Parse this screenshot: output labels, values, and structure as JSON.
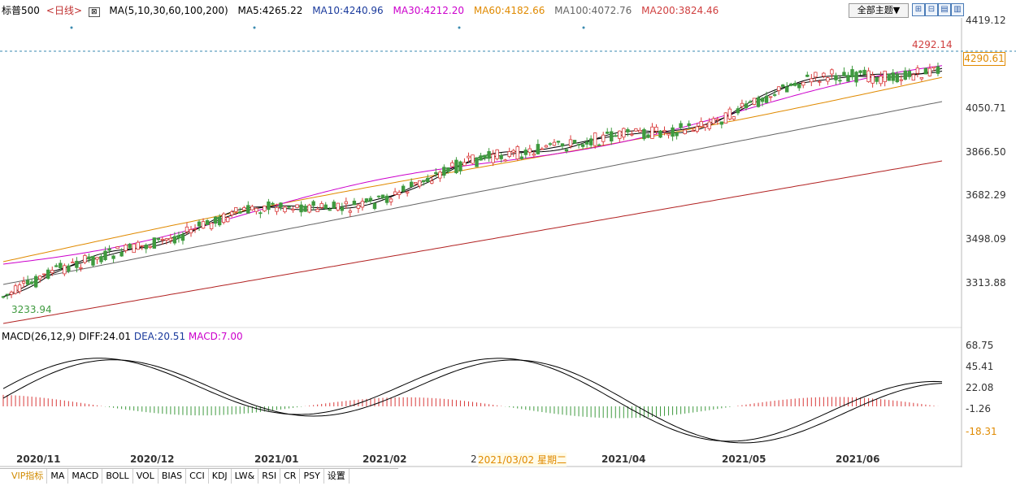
{
  "legend": {
    "symbol": "标普500",
    "period": "<日线>",
    "ma_label": "MA(5,10,30,60,100,200)",
    "ma5": "MA5:4265.22",
    "ma10": "MA10:4240.96",
    "ma30": "MA30:4212.20",
    "ma60": "MA60:4182.66",
    "ma100": "MA100:4072.76",
    "ma200": "MA200:3824.46"
  },
  "theme_button": "全部主题▼",
  "toolbar_icons": [
    "expand-icon",
    "shrink-icon",
    "chart-icon",
    "layout-icon"
  ],
  "price_axis": [
    "4419.12",
    "4050.71",
    "3866.50",
    "3682.29",
    "3498.09",
    "3313.88"
  ],
  "current_price": "4290.61",
  "high_label": "4292.14",
  "low_label": "3233.94",
  "macd_legend": {
    "name": "MACD(26,12,9)",
    "diff": "DIFF:24.01",
    "dea": "DEA:20.51",
    "macd": "MACD:7.00"
  },
  "macd_axis": [
    "68.75",
    "45.41",
    "22.08",
    "-1.26",
    "-18.31"
  ],
  "x_axis": [
    "2020/11",
    "2020/12",
    "2021/01",
    "2021/02",
    "2021/04",
    "2021/05",
    "2021/06"
  ],
  "cursor_date": "2021/03/02 星期二",
  "cursor_prefix": "2",
  "tabs": [
    "VIP指标",
    "MA",
    "MACD",
    "BOLL",
    "VOL",
    "BIAS",
    "CCI",
    "KDJ",
    "LW&",
    "RSI",
    "CR",
    "PSY",
    "设置"
  ],
  "colors": {
    "up": "#d93a3a",
    "down": "#3f9a3f",
    "ma5": "#000000",
    "ma10": "#000000",
    "ma30": "#cc00cc",
    "ma60": "#e08a00",
    "ma100": "#666666",
    "ma200": "#b22222",
    "diff": "#000000",
    "dea": "#000000"
  }
}
